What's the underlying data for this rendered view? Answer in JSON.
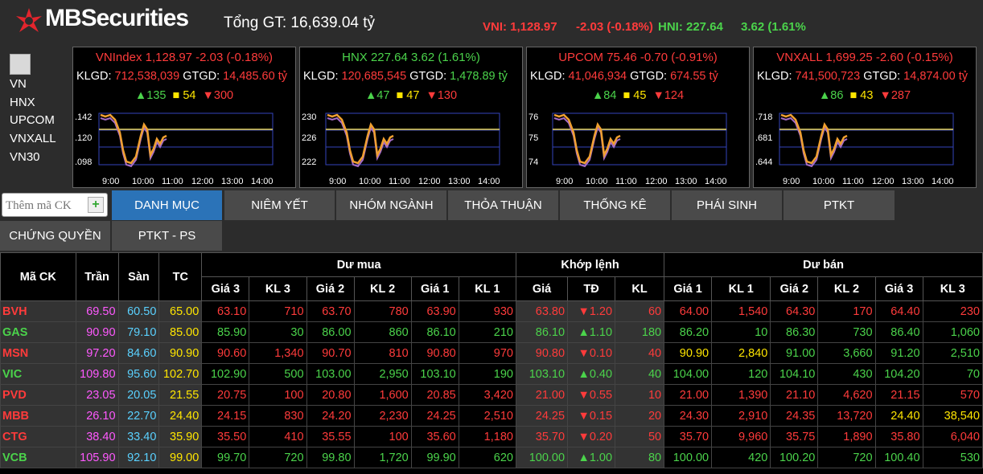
{
  "header": {
    "brand": "MBSecurities",
    "total_label": "Tổng GT: 16,639.04 tỷ",
    "vni": "VNI: 1,128.97",
    "vni_change": "-2.03 (-0.18%)",
    "hni": "HNI: 227.64",
    "hni_change": "3.62 (1.61%"
  },
  "sidebar": {
    "items": [
      "VN",
      "HNX",
      "UPCOM",
      "VNXALL",
      "VN30"
    ]
  },
  "panels": [
    {
      "title": "VNIndex 1,128.97 -2.03 (-0.18%)",
      "klgd_label": "KLGD:",
      "klgd": "712,538,039",
      "gtgd_label": "GTGD:",
      "gtgd": "14,485.60 tỷ",
      "up": "135",
      "ref": "54",
      "down": "300",
      "color": "#ff3b3b",
      "y_ticks": [
        ".142",
        ".120",
        ".098"
      ]
    },
    {
      "title": "HNX 227.64 3.62 (1.61%)",
      "klgd_label": "KLGD:",
      "klgd": "120,685,545",
      "gtgd_label": "GTGD:",
      "gtgd": "1,478.89 tỷ",
      "up": "47",
      "ref": "47",
      "down": "130",
      "color": "#4bd34b",
      "y_ticks": [
        "230",
        "226",
        "222"
      ]
    },
    {
      "title": "UPCOM 75.46 -0.70 (-0.91%)",
      "klgd_label": "KLGD:",
      "klgd": "41,046,934",
      "gtgd_label": "GTGD:",
      "gtgd": "674.55 tỷ",
      "up": "84",
      "ref": "45",
      "down": "124",
      "color": "#ff3b3b",
      "y_ticks": [
        "76",
        "75",
        "74"
      ]
    },
    {
      "title": "VNXALL 1,699.25 -2.60 (-0.15%)",
      "klgd_label": "KLGD:",
      "klgd": "741,500,723",
      "gtgd_label": "GTGD:",
      "gtgd": "14,874.00 tỷ",
      "up": "86",
      "ref": "43",
      "down": "287",
      "color": "#ff3b3b",
      "y_ticks": [
        ".718",
        ".681",
        ".644"
      ]
    }
  ],
  "time_ticks": [
    "9:00",
    "10:00",
    "11:00",
    "12:00",
    "13:00",
    "14:00"
  ],
  "add_input": {
    "placeholder": "Thêm mã CK"
  },
  "tabs": [
    "DANH MỤC",
    "NIÊM YẾT",
    "NHÓM NGÀNH",
    "THỎA THUẬN",
    "THỐNG KÊ",
    "PHÁI SINH",
    "PTKT"
  ],
  "tabs2": [
    "CHỨNG QUYỀN",
    "PTKT - PS"
  ],
  "table": {
    "h_code": "Mã CK",
    "h_ceil": "Trần",
    "h_floor": "Sàn",
    "h_ref": "TC",
    "h_buy": "Dư mua",
    "h_match": "Khớp lệnh",
    "h_sell": "Dư bán",
    "sub": [
      "Giá 3",
      "KL 3",
      "Giá 2",
      "KL 2",
      "Giá 1",
      "KL 1",
      "Giá",
      "TĐ",
      "KL",
      "Giá 1",
      "KL 1",
      "Giá 2",
      "KL 2",
      "Giá 3",
      "KL 3"
    ],
    "rows": [
      {
        "code": "BVH",
        "ceil": "69.50",
        "floor": "60.50",
        "ref": "65.00",
        "cells": [
          "63.10",
          "710",
          "63.70",
          "780",
          "63.90",
          "930",
          "63.80",
          "▼1.20",
          "60",
          "64.00",
          "1,540",
          "64.30",
          "170",
          "64.40",
          "230"
        ],
        "colors": [
          "r",
          "r",
          "r",
          "r",
          "r",
          "r",
          "r",
          "r",
          "r",
          "r",
          "r",
          "r",
          "r",
          "r",
          "r"
        ]
      },
      {
        "code": "GAS",
        "ceil": "90.90",
        "floor": "79.10",
        "ref": "85.00",
        "cells": [
          "85.90",
          "30",
          "86.00",
          "860",
          "86.10",
          "210",
          "86.10",
          "▲1.10",
          "180",
          "86.20",
          "10",
          "86.30",
          "730",
          "86.40",
          "1,060"
        ],
        "colors": [
          "g",
          "g",
          "g",
          "g",
          "g",
          "g",
          "g",
          "g",
          "g",
          "g",
          "g",
          "g",
          "g",
          "g",
          "g"
        ]
      },
      {
        "code": "MSN",
        "ceil": "97.20",
        "floor": "84.60",
        "ref": "90.90",
        "cells": [
          "90.60",
          "1,340",
          "90.70",
          "810",
          "90.80",
          "970",
          "90.80",
          "▼0.10",
          "40",
          "90.90",
          "2,840",
          "91.00",
          "3,660",
          "91.20",
          "2,510"
        ],
        "colors": [
          "r",
          "r",
          "r",
          "r",
          "r",
          "r",
          "r",
          "r",
          "r",
          "y",
          "y",
          "g",
          "g",
          "g",
          "g"
        ]
      },
      {
        "code": "VIC",
        "ceil": "109.80",
        "floor": "95.60",
        "ref": "102.70",
        "cells": [
          "102.90",
          "500",
          "103.00",
          "2,950",
          "103.10",
          "190",
          "103.10",
          "▲0.40",
          "40",
          "104.00",
          "120",
          "104.10",
          "430",
          "104.20",
          "70"
        ],
        "colors": [
          "g",
          "g",
          "g",
          "g",
          "g",
          "g",
          "g",
          "g",
          "g",
          "g",
          "g",
          "g",
          "g",
          "g",
          "g"
        ]
      },
      {
        "code": "PVD",
        "ceil": "23.05",
        "floor": "20.05",
        "ref": "21.55",
        "cells": [
          "20.75",
          "100",
          "20.80",
          "1,600",
          "20.85",
          "3,420",
          "21.00",
          "▼0.55",
          "10",
          "21.00",
          "1,390",
          "21.10",
          "4,620",
          "21.15",
          "570"
        ],
        "colors": [
          "r",
          "r",
          "r",
          "r",
          "r",
          "r",
          "r",
          "r",
          "r",
          "r",
          "r",
          "r",
          "r",
          "r",
          "r"
        ]
      },
      {
        "code": "MBB",
        "ceil": "26.10",
        "floor": "22.70",
        "ref": "24.40",
        "cells": [
          "24.15",
          "830",
          "24.20",
          "2,230",
          "24.25",
          "2,510",
          "24.25",
          "▼0.15",
          "20",
          "24.30",
          "2,910",
          "24.35",
          "13,720",
          "24.40",
          "38,540"
        ],
        "colors": [
          "r",
          "r",
          "r",
          "r",
          "r",
          "r",
          "r",
          "r",
          "r",
          "r",
          "r",
          "r",
          "r",
          "y",
          "y"
        ]
      },
      {
        "code": "CTG",
        "ceil": "38.40",
        "floor": "33.40",
        "ref": "35.90",
        "cells": [
          "35.50",
          "410",
          "35.55",
          "100",
          "35.60",
          "1,180",
          "35.70",
          "▼0.20",
          "50",
          "35.70",
          "9,960",
          "35.75",
          "1,890",
          "35.80",
          "6,040"
        ],
        "colors": [
          "r",
          "r",
          "r",
          "r",
          "r",
          "r",
          "r",
          "r",
          "r",
          "r",
          "r",
          "r",
          "r",
          "r",
          "r"
        ]
      },
      {
        "code": "VCB",
        "ceil": "105.90",
        "floor": "92.10",
        "ref": "99.00",
        "cells": [
          "99.70",
          "720",
          "99.80",
          "1,720",
          "99.90",
          "620",
          "100.00",
          "▲1.00",
          "80",
          "100.00",
          "420",
          "100.20",
          "720",
          "100.40",
          "530"
        ],
        "colors": [
          "g",
          "g",
          "g",
          "g",
          "g",
          "g",
          "g",
          "g",
          "g",
          "g",
          "g",
          "g",
          "g",
          "g",
          "g"
        ]
      }
    ],
    "code_colors": [
      "#ff3b3b",
      "#4bd34b",
      "#ff3b3b",
      "#4bd34b",
      "#ff3b3b",
      "#ff3b3b",
      "#ff3b3b",
      "#4bd34b"
    ]
  }
}
